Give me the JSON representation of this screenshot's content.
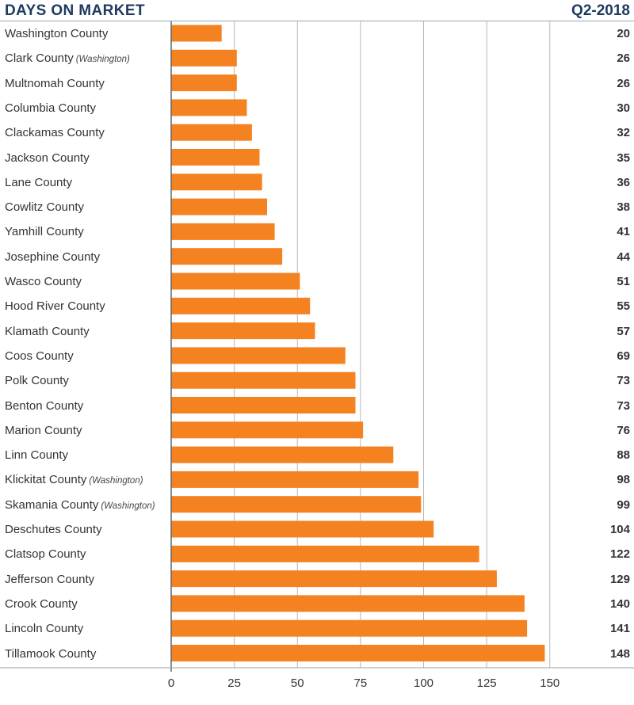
{
  "header": {
    "title": "DAYS ON MARKET",
    "period": "Q2-2018"
  },
  "colors": {
    "bar": "#f58220",
    "grid": "#b8b8b8",
    "axis": "#666666",
    "title": "#1e3a5f"
  },
  "chart_data": {
    "type": "bar",
    "orientation": "horizontal",
    "title": "DAYS ON MARKET",
    "subtitle": "Q2-2018",
    "categories": [
      {
        "name": "Washington County",
        "note": ""
      },
      {
        "name": "Clark County",
        "note": "(Washington)"
      },
      {
        "name": "Multnomah County",
        "note": ""
      },
      {
        "name": "Columbia County",
        "note": ""
      },
      {
        "name": "Clackamas County",
        "note": ""
      },
      {
        "name": "Jackson County",
        "note": ""
      },
      {
        "name": "Lane County",
        "note": ""
      },
      {
        "name": "Cowlitz County",
        "note": ""
      },
      {
        "name": "Yamhill County",
        "note": ""
      },
      {
        "name": "Josephine County",
        "note": ""
      },
      {
        "name": "Wasco County",
        "note": ""
      },
      {
        "name": "Hood River County",
        "note": ""
      },
      {
        "name": "Klamath County",
        "note": ""
      },
      {
        "name": "Coos County",
        "note": ""
      },
      {
        "name": "Polk County",
        "note": ""
      },
      {
        "name": "Benton County",
        "note": ""
      },
      {
        "name": "Marion County",
        "note": ""
      },
      {
        "name": "Linn County",
        "note": ""
      },
      {
        "name": "Klickitat County",
        "note": "(Washington)"
      },
      {
        "name": "Skamania County",
        "note": "(Washington)"
      },
      {
        "name": "Deschutes County",
        "note": ""
      },
      {
        "name": "Clatsop County",
        "note": ""
      },
      {
        "name": "Jefferson County",
        "note": ""
      },
      {
        "name": "Crook County",
        "note": ""
      },
      {
        "name": "Lincoln County",
        "note": ""
      },
      {
        "name": "Tillamook County",
        "note": ""
      }
    ],
    "values": [
      20,
      26,
      26,
      30,
      32,
      35,
      36,
      38,
      41,
      44,
      51,
      55,
      57,
      69,
      73,
      73,
      76,
      88,
      98,
      99,
      104,
      122,
      129,
      140,
      141,
      148
    ],
    "xlim": [
      0,
      150
    ],
    "xticks": [
      0,
      25,
      50,
      75,
      100,
      125,
      150
    ],
    "grid": true,
    "xlabel": "",
    "ylabel": ""
  }
}
